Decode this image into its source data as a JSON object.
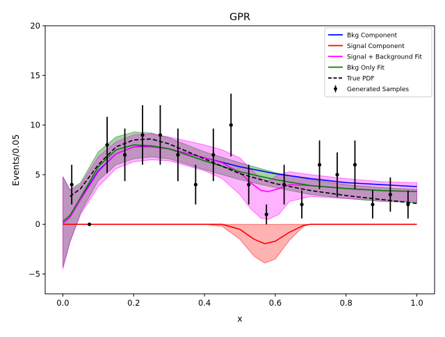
{
  "chart_data": {
    "type": "line",
    "title": "GPR",
    "xlabel": "x",
    "ylabel": "Events/0.05",
    "xlim": [
      -0.05,
      1.05
    ],
    "ylim": [
      -7,
      20
    ],
    "xticks": [
      0.0,
      0.2,
      0.4,
      0.6,
      0.8,
      1.0
    ],
    "xtick_labels": [
      "0.0",
      "0.2",
      "0.4",
      "0.6",
      "0.8",
      "1.0"
    ],
    "yticks": [
      -5,
      0,
      5,
      10,
      15,
      20
    ],
    "ytick_labels": [
      "−5",
      "0",
      "5",
      "10",
      "15",
      "20"
    ],
    "grid": false,
    "legend_position": "top-right",
    "legend": [
      {
        "label": "Bkg Component",
        "color": "#0000ff",
        "style": "solid"
      },
      {
        "label": "Signal Component",
        "color": "#ff0000",
        "style": "solid"
      },
      {
        "label": "Signal + Background Fit",
        "color": "#ff00ff",
        "style": "solid"
      },
      {
        "label": "Bkg Only Fit",
        "color": "#008000",
        "style": "solid"
      },
      {
        "label": "True PDF",
        "color": "#000000",
        "style": "dashed"
      },
      {
        "label": "Generated Samples",
        "color": "#000000",
        "style": "errorbar"
      }
    ],
    "bands": [
      {
        "name": "Bkg Only Fit band",
        "color": "#008000",
        "opacity": 0.35,
        "x": [
          0.0,
          0.02,
          0.05,
          0.1,
          0.15,
          0.2,
          0.25,
          0.3,
          0.4,
          0.5,
          0.6,
          0.7,
          0.8,
          0.9,
          1.0
        ],
        "upper": [
          4.8,
          3.5,
          4.2,
          7.3,
          8.8,
          9.3,
          9.2,
          8.7,
          7.3,
          6.2,
          5.2,
          4.5,
          4.0,
          3.7,
          3.5
        ],
        "lower": [
          -4.3,
          -1.8,
          1.2,
          4.4,
          6.0,
          6.6,
          6.8,
          6.6,
          5.5,
          4.5,
          3.7,
          3.0,
          2.6,
          2.3,
          2.2
        ]
      },
      {
        "name": "Signal + Background Fit band",
        "color": "#ff00ff",
        "opacity": 0.3,
        "x": [
          0.0,
          0.02,
          0.05,
          0.1,
          0.15,
          0.2,
          0.25,
          0.3,
          0.4,
          0.45,
          0.5,
          0.53,
          0.56,
          0.58,
          0.61,
          0.64,
          0.7,
          0.8,
          0.9,
          1.0
        ],
        "upper": [
          4.8,
          3.4,
          4.0,
          6.8,
          8.3,
          9.0,
          9.1,
          8.8,
          8.0,
          7.5,
          6.7,
          5.6,
          4.6,
          4.4,
          5.0,
          5.3,
          5.0,
          4.6,
          4.3,
          4.2
        ],
        "lower": [
          -4.5,
          -1.8,
          1.0,
          3.8,
          5.6,
          6.3,
          6.5,
          6.4,
          5.4,
          4.6,
          3.0,
          1.6,
          0.6,
          0.5,
          1.0,
          2.3,
          2.8,
          2.6,
          2.4,
          2.3
        ]
      },
      {
        "name": "Signal Component band",
        "color": "#ff0000",
        "opacity": 0.3,
        "x": [
          0.0,
          0.4,
          0.45,
          0.5,
          0.54,
          0.57,
          0.6,
          0.64,
          0.68,
          0.7,
          1.0
        ],
        "upper": [
          0,
          0,
          0,
          0,
          0,
          0,
          0,
          0,
          0,
          0,
          0
        ],
        "lower": [
          0,
          0,
          -0.2,
          -1.5,
          -3.2,
          -3.9,
          -3.5,
          -1.6,
          -0.2,
          0,
          0
        ]
      }
    ],
    "series": [
      {
        "name": "Bkg Component",
        "color": "#0000ff",
        "dash": false,
        "x": [
          0.0,
          0.02,
          0.05,
          0.1,
          0.15,
          0.2,
          0.25,
          0.3,
          0.4,
          0.5,
          0.6,
          0.7,
          0.8,
          0.9,
          1.0
        ],
        "y": [
          0.1,
          0.7,
          2.6,
          5.4,
          7.1,
          7.8,
          7.9,
          7.6,
          6.7,
          5.8,
          5.1,
          4.6,
          4.2,
          4.0,
          3.8
        ]
      },
      {
        "name": "Signal Component",
        "color": "#ff0000",
        "dash": false,
        "x": [
          0.0,
          0.4,
          0.45,
          0.5,
          0.54,
          0.57,
          0.6,
          0.64,
          0.68,
          0.7,
          1.0
        ],
        "y": [
          0,
          0,
          0,
          -0.5,
          -1.5,
          -1.95,
          -1.7,
          -0.8,
          -0.1,
          0,
          0
        ]
      },
      {
        "name": "Signal + Background Fit",
        "color": "#ff00ff",
        "dash": false,
        "x": [
          0.0,
          0.02,
          0.05,
          0.1,
          0.15,
          0.2,
          0.25,
          0.3,
          0.4,
          0.45,
          0.5,
          0.53,
          0.56,
          0.58,
          0.61,
          0.64,
          0.7,
          0.8,
          0.9,
          1.0
        ],
        "y": [
          0.1,
          0.7,
          2.5,
          5.3,
          7.1,
          7.8,
          7.8,
          7.6,
          6.7,
          6.2,
          5.2,
          4.2,
          3.4,
          3.3,
          3.6,
          4.0,
          3.9,
          3.6,
          3.4,
          3.3
        ]
      },
      {
        "name": "Bkg Only Fit",
        "color": "#008000",
        "dash": false,
        "x": [
          0.0,
          0.02,
          0.05,
          0.1,
          0.15,
          0.2,
          0.25,
          0.3,
          0.4,
          0.5,
          0.6,
          0.7,
          0.8,
          0.9,
          1.0
        ],
        "y": [
          0.3,
          0.9,
          2.7,
          5.8,
          7.5,
          8.0,
          7.9,
          7.6,
          6.4,
          5.3,
          4.5,
          3.9,
          3.6,
          3.4,
          3.3
        ]
      },
      {
        "name": "True PDF",
        "color": "#000000",
        "dash": true,
        "x": [
          0.02,
          0.05,
          0.1,
          0.15,
          0.2,
          0.25,
          0.3,
          0.4,
          0.5,
          0.6,
          0.7,
          0.8,
          0.9,
          1.0
        ],
        "y": [
          2.8,
          3.6,
          6.0,
          7.8,
          8.5,
          8.6,
          8.1,
          6.6,
          5.1,
          4.1,
          3.4,
          2.9,
          2.5,
          2.1
        ]
      }
    ],
    "samples": {
      "name": "Generated Samples",
      "x": [
        0.025,
        0.075,
        0.125,
        0.175,
        0.225,
        0.275,
        0.325,
        0.375,
        0.425,
        0.475,
        0.525,
        0.575,
        0.625,
        0.675,
        0.725,
        0.775,
        0.825,
        0.875,
        0.925,
        0.975
      ],
      "y": [
        4,
        0,
        8,
        7,
        9,
        9,
        7,
        4,
        7,
        10,
        4,
        1,
        4,
        2,
        6,
        5,
        6,
        2,
        3,
        2
      ],
      "err": [
        2.0,
        0,
        2.83,
        2.65,
        3.0,
        3.0,
        2.65,
        2.0,
        2.65,
        3.16,
        2.0,
        1.0,
        2.0,
        1.41,
        2.45,
        2.24,
        2.45,
        1.41,
        1.73,
        1.41
      ]
    }
  }
}
